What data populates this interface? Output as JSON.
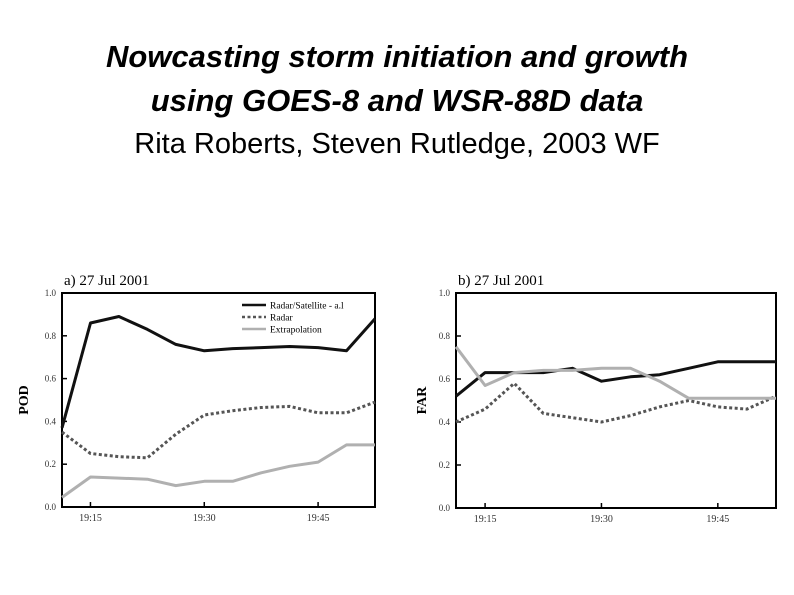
{
  "slide": {
    "title_line1": "Nowcasting storm initiation and growth",
    "title_line2": "using GOES-8 and WSR-88D data",
    "subtitle": "Rita Roberts, Steven Rutledge, 2003 WF"
  },
  "colors": {
    "radar_satellite": "#111111",
    "radar": "#555555",
    "extrapolation": "#b0b0b0",
    "axis": "#000000"
  },
  "chart_data": [
    {
      "type": "line",
      "panel_label": "a) 27 Jul 2001",
      "ylabel": "POD",
      "xlabel": "",
      "x": [
        0,
        1,
        2,
        3,
        4,
        5,
        6,
        7,
        8,
        9,
        10,
        11
      ],
      "xlim": [
        0,
        11
      ],
      "xticks": [
        1,
        5,
        9
      ],
      "xtick_labels": [
        "19:15",
        "19:30",
        "19:45"
      ],
      "ylim": [
        0,
        1.0
      ],
      "yticks": [
        0.0,
        0.2,
        0.4,
        0.6,
        0.8,
        1.0
      ],
      "ytick_labels": [
        "0.0",
        "0.2",
        "0.4",
        "0.6",
        "0.8",
        "1.0"
      ],
      "legend": [
        "Radar/Satellite - a.l",
        "Radar",
        "Extrapolation"
      ],
      "legend_position": "top-right",
      "series": [
        {
          "name": "Radar/Satellite - a.l",
          "style": "solid",
          "color_key": "radar_satellite",
          "values": [
            0.37,
            0.86,
            0.89,
            0.83,
            0.76,
            0.73,
            0.74,
            0.745,
            0.75,
            0.745,
            0.73,
            0.88
          ]
        },
        {
          "name": "Radar",
          "style": "dotted",
          "color_key": "radar",
          "values": [
            0.35,
            0.25,
            0.235,
            0.23,
            0.34,
            0.43,
            0.45,
            0.465,
            0.47,
            0.44,
            0.44,
            0.49
          ]
        },
        {
          "name": "Extrapolation",
          "style": "solid",
          "color_key": "extrapolation",
          "values": [
            0.045,
            0.14,
            0.135,
            0.13,
            0.1,
            0.12,
            0.12,
            0.16,
            0.19,
            0.21,
            0.29,
            0.29
          ]
        }
      ]
    },
    {
      "type": "line",
      "panel_label": "b) 27 Jul 2001",
      "ylabel": "FAR",
      "xlabel": "",
      "x": [
        0,
        1,
        2,
        3,
        4,
        5,
        6,
        7,
        8,
        9,
        10,
        11
      ],
      "xlim": [
        0,
        11
      ],
      "xticks": [
        1,
        5,
        9
      ],
      "xtick_labels": [
        "19:15",
        "19:30",
        "19:45"
      ],
      "ylim": [
        0,
        1.0
      ],
      "yticks": [
        0.0,
        0.2,
        0.4,
        0.6,
        0.8,
        1.0
      ],
      "ytick_labels": [
        "0.0",
        "0.2",
        "0.4",
        "0.6",
        "0.8",
        "1.0"
      ],
      "legend": [],
      "series": [
        {
          "name": "Radar/Satellite - a.l",
          "style": "solid",
          "color_key": "radar_satellite",
          "values": [
            0.52,
            0.63,
            0.63,
            0.63,
            0.65,
            0.59,
            0.61,
            0.62,
            0.65,
            0.68,
            0.68,
            0.68
          ]
        },
        {
          "name": "Radar",
          "style": "dotted",
          "color_key": "radar",
          "values": [
            0.4,
            0.46,
            0.58,
            0.44,
            0.42,
            0.4,
            0.43,
            0.47,
            0.5,
            0.47,
            0.46,
            0.52
          ]
        },
        {
          "name": "Extrapolation",
          "style": "solid",
          "color_key": "extrapolation",
          "values": [
            0.75,
            0.57,
            0.63,
            0.64,
            0.64,
            0.65,
            0.65,
            0.59,
            0.51,
            0.51,
            0.51,
            0.51
          ]
        }
      ]
    }
  ]
}
